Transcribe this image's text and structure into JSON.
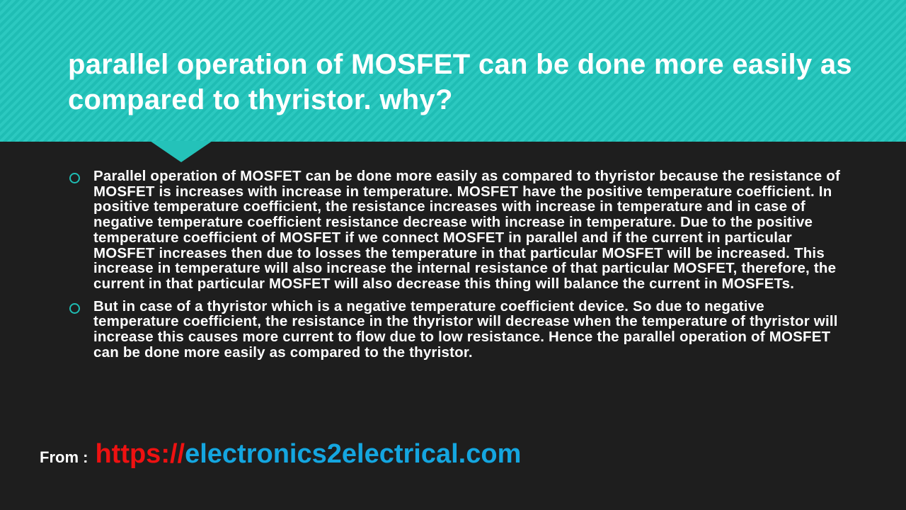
{
  "slide": {
    "title": "parallel operation of MOSFET can be done more easily as compared to thyristor. why?",
    "bullets": [
      {
        "icon": "circle-bullet-icon",
        "text": "Parallel operation of MOSFET can be done more easily as compared to thyristor because the resistance of MOSFET is increases with increase in temperature. MOSFET have the positive temperature coefficient. In positive temperature coefficient, the resistance increases with increase in temperature and in case of negative temperature coefficient resistance decrease with increase in temperature. Due to the positive temperature coefficient of MOSFET if we connect MOSFET in parallel and if the current in particular MOSFET increases then due to losses the temperature in that particular MOSFET will be increased. This increase in temperature will also increase the internal resistance of that particular MOSFET, therefore, the current in that particular MOSFET will also decrease this thing will balance the current in MOSFETs."
      },
      {
        "icon": "circle-bullet-icon",
        "text": "But in case of a thyristor which is a negative temperature coefficient device. So due to negative temperature coefficient, the resistance in the thyristor will decrease when the temperature of thyristor will increase this causes more current to flow due to low resistance. Hence the parallel operation of MOSFET can be done more easily as compared to the thyristor."
      }
    ],
    "footer": {
      "label": "From :",
      "url_protocol": "https://",
      "url_domain": "electronics2electrical.com"
    },
    "colors": {
      "accent": "#1fbdb4",
      "background": "#1e1e1e",
      "protocol": "#ee1111",
      "domain": "#14a6e0"
    }
  }
}
